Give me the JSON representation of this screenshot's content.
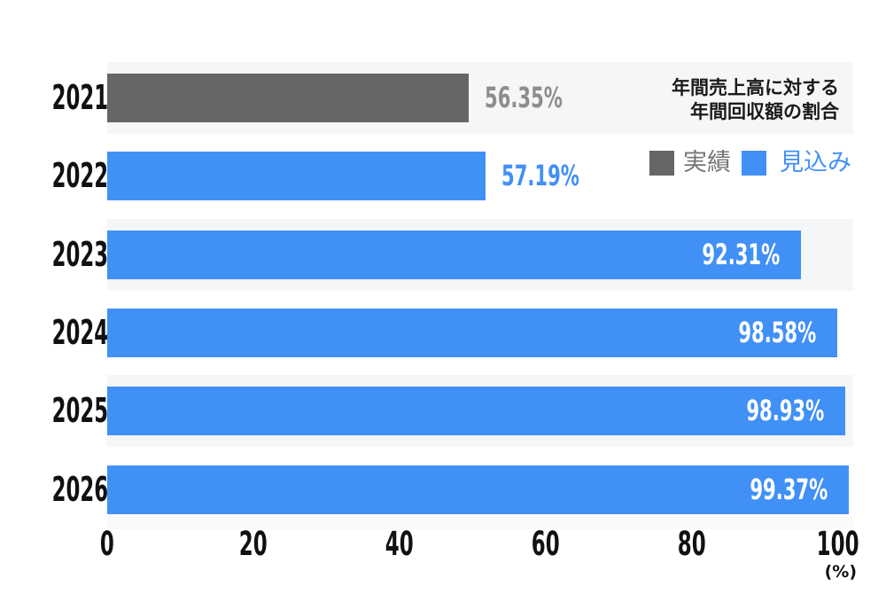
{
  "chart_data": {
    "type": "bar",
    "orientation": "horizontal",
    "title": "年間売上高に対する年間回収額の割合",
    "xlabel": "(%)",
    "xlim": [
      0,
      102
    ],
    "grid": false,
    "legend_position": "top-right",
    "categories": [
      "2021.2",
      "2022.2",
      "2023.2",
      "2024.2",
      "2025.2",
      "2026.2"
    ],
    "series": [
      {
        "name": "実績",
        "key": "actual",
        "values": [
          56.35,
          null,
          null,
          null,
          null,
          null
        ]
      },
      {
        "name": "見込み",
        "key": "forecast",
        "values": [
          null,
          57.19,
          92.31,
          98.58,
          98.93,
          99.37
        ]
      }
    ],
    "rows": [
      {
        "category": "2021.2",
        "value": 56.35,
        "value_label": "56.35%",
        "series": "実績",
        "series_key": "actual",
        "display_pct": 48.5,
        "label_placement": "outside",
        "band": true
      },
      {
        "category": "2022.2",
        "value": 57.19,
        "value_label": "57.19%",
        "series": "見込み",
        "series_key": "forecast",
        "display_pct": 50.7,
        "label_placement": "outside",
        "band": false
      },
      {
        "category": "2023.2",
        "value": 92.31,
        "value_label": "92.31%",
        "series": "見込み",
        "series_key": "forecast",
        "display_pct": 93.0,
        "label_placement": "inside",
        "band": true
      },
      {
        "category": "2024.2",
        "value": 98.58,
        "value_label": "98.58%",
        "series": "見込み",
        "series_key": "forecast",
        "display_pct": 97.9,
        "label_placement": "inside",
        "band": false
      },
      {
        "category": "2025.2",
        "value": 98.93,
        "value_label": "98.93%",
        "series": "見込み",
        "series_key": "forecast",
        "display_pct": 98.9,
        "label_placement": "inside",
        "band": true
      },
      {
        "category": "2026.2",
        "value": 99.37,
        "value_label": "99.37%",
        "series": "見込み",
        "series_key": "forecast",
        "display_pct": 99.4,
        "label_placement": "inside",
        "band": false
      }
    ],
    "x_axis": {
      "ticks": [
        0,
        20,
        40,
        60,
        80,
        100
      ],
      "tick_labels": [
        "0",
        "20",
        "40",
        "60",
        "80",
        "100"
      ],
      "unit_label": "(%)"
    }
  },
  "annotation": {
    "lines": [
      "年間売上高に対する",
      "年間回収額の割合"
    ]
  },
  "legend": {
    "items": [
      {
        "label": "実績",
        "key": "actual"
      },
      {
        "label": "見込み",
        "key": "forecast"
      }
    ]
  },
  "colors": {
    "actual": "#666666",
    "forecast": "#4190F5",
    "band": "#F5F6F7",
    "bottom_strip": "#FAFAFB",
    "inside_label": "#FFFFFF",
    "outside_label_actual": "#8D8D8D",
    "outside_label_forecast": "#4190F5",
    "axis_text": "#111111",
    "annotation_text": "#1A1A1A",
    "legend_actual_text": "#757575",
    "legend_forecast_text": "#4190F5"
  }
}
